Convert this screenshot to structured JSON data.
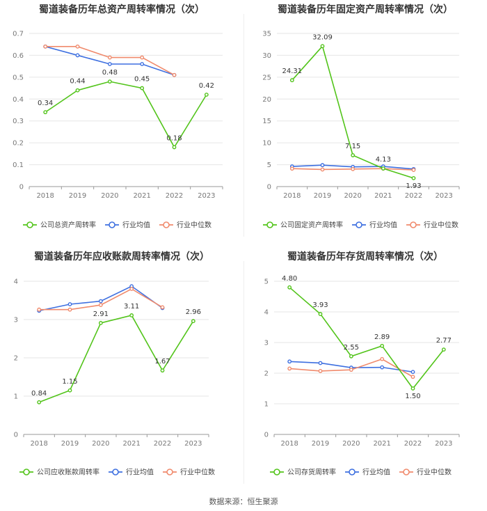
{
  "chart_data": [
    {
      "type": "line",
      "title": "蜀道装备历年总资产周转率情况（次）",
      "categories": [
        "2018",
        "2019",
        "2020",
        "2021",
        "2022",
        "2023"
      ],
      "ylim": [
        0,
        0.7
      ],
      "yticks": [
        "0",
        "0.1",
        "0.2",
        "0.3",
        "0.4",
        "0.5",
        "0.6",
        "0.7"
      ],
      "series": [
        {
          "name": "公司总资产周转率",
          "color": "#52c41a",
          "labels": [
            "0.34",
            "0.44",
            "0.48",
            "0.45",
            "0.18",
            "0.42"
          ],
          "values": [
            0.34,
            0.44,
            0.48,
            0.45,
            0.18,
            0.42
          ]
        },
        {
          "name": "行业均值",
          "color": "#3d6fe0",
          "values": [
            0.64,
            0.6,
            0.56,
            0.56,
            0.51,
            null
          ]
        },
        {
          "name": "行业中位数",
          "color": "#f08a6c",
          "values": [
            0.64,
            0.64,
            0.59,
            0.59,
            0.51,
            null
          ]
        }
      ]
    },
    {
      "type": "line",
      "title": "蜀道装备历年固定资产周转率情况（次）",
      "categories": [
        "2018",
        "2019",
        "2020",
        "2021",
        "2022",
        "2023"
      ],
      "ylim": [
        0,
        35
      ],
      "yticks": [
        "0",
        "5",
        "10",
        "15",
        "20",
        "25",
        "30",
        "35"
      ],
      "series": [
        {
          "name": "公司固定资产周转率",
          "color": "#52c41a",
          "labels": [
            "24.31",
            "32.09",
            "7.15",
            "4.13",
            "1.93",
            null
          ],
          "values": [
            24.31,
            32.09,
            7.15,
            4.13,
            1.93,
            null
          ]
        },
        {
          "name": "行业均值",
          "color": "#3d6fe0",
          "values": [
            4.6,
            4.9,
            4.5,
            4.6,
            4.0,
            null
          ]
        },
        {
          "name": "行业中位数",
          "color": "#f08a6c",
          "values": [
            4.1,
            3.9,
            4.0,
            4.1,
            3.8,
            null
          ]
        }
      ]
    },
    {
      "type": "line",
      "title": "蜀道装备历年应收账款周转率情况（次）",
      "categories": [
        "2018",
        "2019",
        "2020",
        "2021",
        "2022",
        "2023"
      ],
      "ylim": [
        0,
        4
      ],
      "yticks": [
        "0",
        "1",
        "2",
        "3",
        "4"
      ],
      "series": [
        {
          "name": "公司应收账款周转率",
          "color": "#52c41a",
          "labels": [
            "0.84",
            "1.15",
            "2.91",
            "3.11",
            "1.67",
            "2.96"
          ],
          "values": [
            0.84,
            1.15,
            2.91,
            3.11,
            1.67,
            2.96
          ]
        },
        {
          "name": "行业均值",
          "color": "#3d6fe0",
          "values": [
            3.23,
            3.4,
            3.48,
            3.87,
            3.3,
            null
          ]
        },
        {
          "name": "行业中位数",
          "color": "#f08a6c",
          "values": [
            3.26,
            3.26,
            3.38,
            3.8,
            3.32,
            null
          ]
        }
      ]
    },
    {
      "type": "line",
      "title": "蜀道装备历年存货周转率情况（次）",
      "categories": [
        "2018",
        "2019",
        "2020",
        "2021",
        "2022",
        "2023"
      ],
      "ylim": [
        0,
        5
      ],
      "yticks": [
        "0",
        "1",
        "2",
        "3",
        "4",
        "5"
      ],
      "series": [
        {
          "name": "公司存货周转率",
          "color": "#52c41a",
          "labels": [
            "4.80",
            "3.93",
            "2.55",
            "2.89",
            "1.50",
            "2.77"
          ],
          "values": [
            4.8,
            3.93,
            2.55,
            2.89,
            1.5,
            2.77
          ]
        },
        {
          "name": "行业均值",
          "color": "#3d6fe0",
          "values": [
            2.38,
            2.33,
            2.18,
            2.19,
            2.04,
            null
          ]
        },
        {
          "name": "行业中位数",
          "color": "#f08a6c",
          "values": [
            2.15,
            2.07,
            2.11,
            2.46,
            1.88,
            null
          ]
        }
      ]
    }
  ],
  "footer": "数据来源：恒生聚源"
}
